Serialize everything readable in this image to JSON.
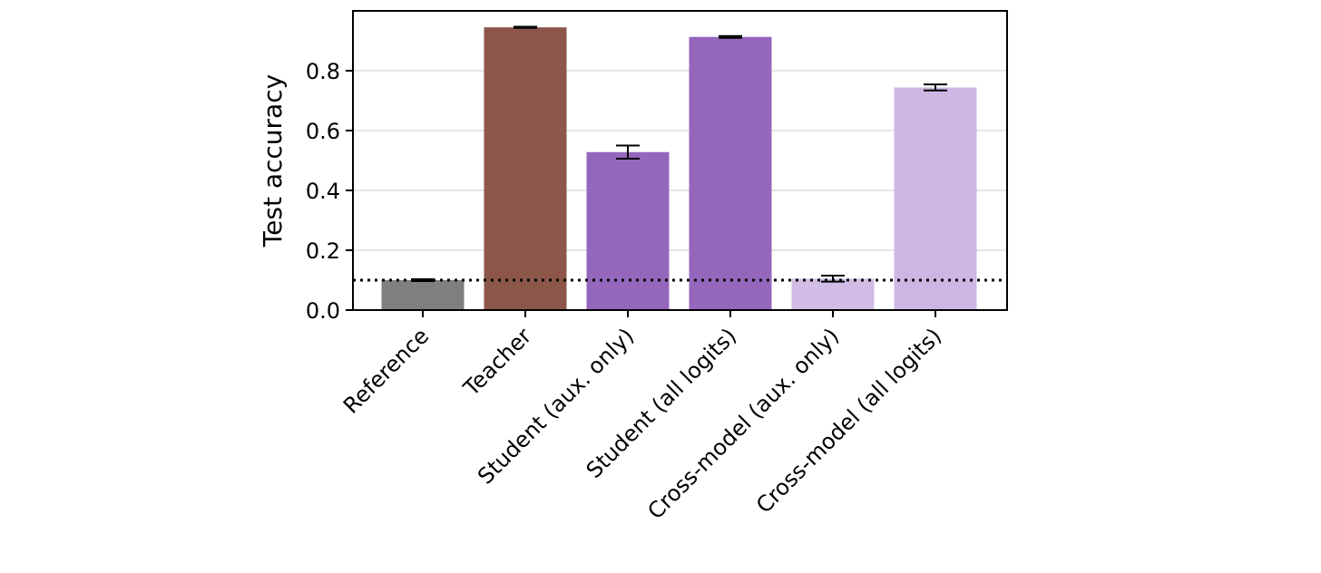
{
  "chart_data": {
    "type": "bar",
    "title": "",
    "xlabel": "",
    "ylabel": "Test accuracy",
    "ylim": [
      0,
      1.0
    ],
    "yticks": [
      0.0,
      0.2,
      0.4,
      0.6,
      0.8
    ],
    "ytick_labels": [
      "0.0",
      "0.2",
      "0.4",
      "0.6",
      "0.8"
    ],
    "grid": "horizontal",
    "categories": [
      "Reference",
      "Teacher",
      "Student (aux. only)",
      "Student (all logits)",
      "Cross-model (aux. only)",
      "Cross-model (all logits)"
    ],
    "values": [
      0.1,
      0.945,
      0.528,
      0.913,
      0.105,
      0.744
    ],
    "errors": [
      0.003,
      0.002,
      0.022,
      0.003,
      0.01,
      0.01
    ],
    "colors": [
      "#7f7f7f",
      "#8c564b",
      "#9467bd",
      "#9467bd",
      "#d1bce5",
      "#cdb7e2"
    ],
    "reference_line": {
      "value": 0.1,
      "style": "dotted",
      "color": "#000000"
    }
  }
}
